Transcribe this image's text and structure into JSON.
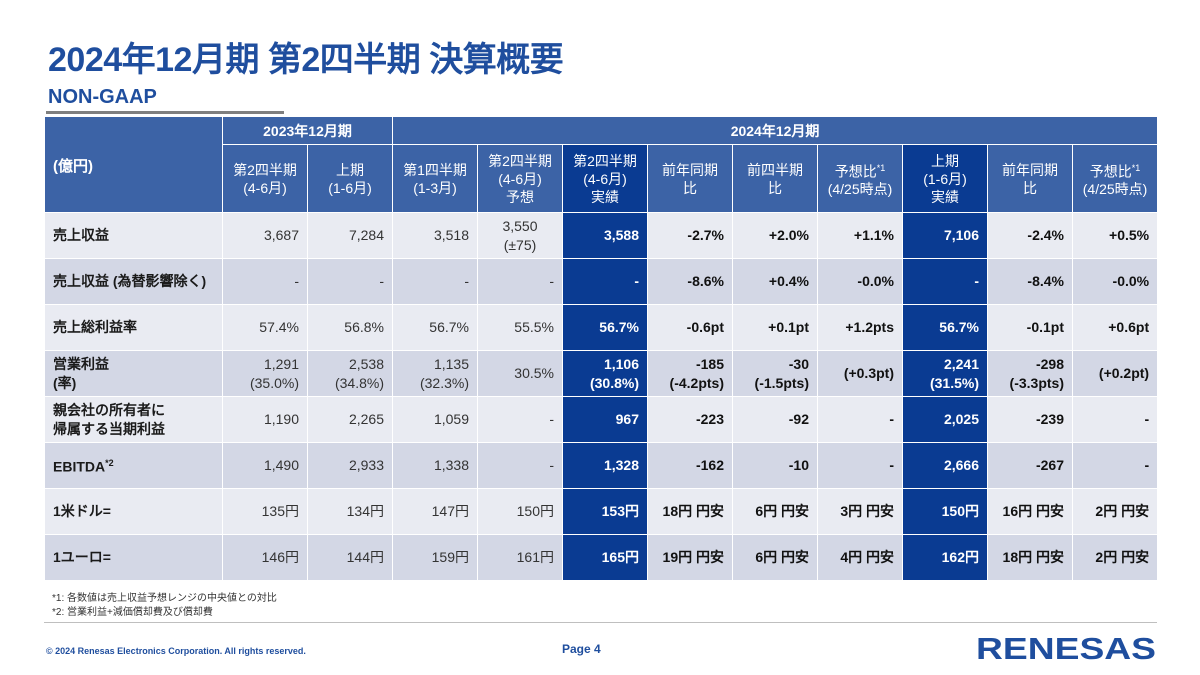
{
  "title": "2024年12月期 第2四半期 決算概要",
  "subtitle": "NON-GAAP",
  "table": {
    "unit": "(億円)",
    "group_2023": "2023年12月期",
    "group_2024": "2024年12月期",
    "columns": [
      [
        "第2四半期",
        "(4-6月)"
      ],
      [
        "上期",
        "(1-6月)"
      ],
      [
        "第1四半期",
        "(1-3月)"
      ],
      [
        "第2四半期",
        "(4-6月)",
        "予想"
      ],
      [
        "第2四半期",
        "(4-6月)",
        "実績"
      ],
      [
        "前年同期比"
      ],
      [
        "前四半期比"
      ],
      [
        "予想比",
        "(4/25時点)"
      ],
      [
        "上期",
        "(1-6月)",
        "実績"
      ],
      [
        "前年同期比"
      ],
      [
        "予想比",
        "(4/25時点)"
      ]
    ],
    "footnote_mark_1": "*1",
    "rows": [
      {
        "label": [
          "売上収益"
        ],
        "values": [
          [
            "3,687"
          ],
          [
            "7,284"
          ],
          [
            "3,518"
          ],
          [
            "3,550",
            "(±75)"
          ],
          [
            "3,588"
          ],
          [
            "-2.7%"
          ],
          [
            "+2.0%"
          ],
          [
            "+1.1%"
          ],
          [
            "7,106"
          ],
          [
            "-2.4%"
          ],
          [
            "+0.5%"
          ]
        ]
      },
      {
        "label": [
          "売上収益 (為替影響除く)"
        ],
        "values": [
          [
            "-"
          ],
          [
            "-"
          ],
          [
            "-"
          ],
          [
            "-"
          ],
          [
            "-"
          ],
          [
            "-8.6%"
          ],
          [
            "+0.4%"
          ],
          [
            "-0.0%"
          ],
          [
            "-"
          ],
          [
            "-8.4%"
          ],
          [
            "-0.0%"
          ]
        ]
      },
      {
        "label": [
          "売上総利益率"
        ],
        "values": [
          [
            "57.4%"
          ],
          [
            "56.8%"
          ],
          [
            "56.7%"
          ],
          [
            "55.5%"
          ],
          [
            "56.7%"
          ],
          [
            "-0.6pt"
          ],
          [
            "+0.1pt"
          ],
          [
            "+1.2pts"
          ],
          [
            "56.7%"
          ],
          [
            "-0.1pt"
          ],
          [
            "+0.6pt"
          ]
        ]
      },
      {
        "label": [
          "営業利益",
          "(率)"
        ],
        "values": [
          [
            "1,291",
            "(35.0%)"
          ],
          [
            "2,538",
            "(34.8%)"
          ],
          [
            "1,135",
            "(32.3%)"
          ],
          [
            "30.5%"
          ],
          [
            "1,106",
            "(30.8%)"
          ],
          [
            "-185",
            "(-4.2pts)"
          ],
          [
            "-30",
            "(-1.5pts)"
          ],
          [
            "(+0.3pt)"
          ],
          [
            "2,241",
            "(31.5%)"
          ],
          [
            "-298",
            "(-3.3pts)"
          ],
          [
            "(+0.2pt)"
          ]
        ]
      },
      {
        "label": [
          "親会社の所有者に",
          "帰属する当期利益"
        ],
        "values": [
          [
            "1,190"
          ],
          [
            "2,265"
          ],
          [
            "1,059"
          ],
          [
            "-"
          ],
          [
            "967"
          ],
          [
            "-223"
          ],
          [
            "-92"
          ],
          [
            "-"
          ],
          [
            "2,025"
          ],
          [
            "-239"
          ],
          [
            "-"
          ]
        ]
      },
      {
        "label": [
          "EBITDA"
        ],
        "label_sup": "*2",
        "values": [
          [
            "1,490"
          ],
          [
            "2,933"
          ],
          [
            "1,338"
          ],
          [
            "-"
          ],
          [
            "1,328"
          ],
          [
            "-162"
          ],
          [
            "-10"
          ],
          [
            "-"
          ],
          [
            "2,666"
          ],
          [
            "-267"
          ],
          [
            "-"
          ]
        ]
      },
      {
        "label": [
          "1米ドル="
        ],
        "values": [
          [
            "135円"
          ],
          [
            "134円"
          ],
          [
            "147円"
          ],
          [
            "150円"
          ],
          [
            "153円"
          ],
          [
            "18円 円安"
          ],
          [
            "6円 円安"
          ],
          [
            "3円 円安"
          ],
          [
            "150円"
          ],
          [
            "16円 円安"
          ],
          [
            "2円 円安"
          ]
        ]
      },
      {
        "label": [
          "1ユーロ="
        ],
        "values": [
          [
            "146円"
          ],
          [
            "144円"
          ],
          [
            "159円"
          ],
          [
            "161円"
          ],
          [
            "165円"
          ],
          [
            "19円 円安"
          ],
          [
            "6円 円安"
          ],
          [
            "4円 円安"
          ],
          [
            "162円"
          ],
          [
            "18円 円安"
          ],
          [
            "2円 円安"
          ]
        ]
      }
    ]
  },
  "notes": [
    "*1: 各数値は売上収益予想レンジの中央値との対比",
    "*2: 営業利益+減価償却費及び償却費"
  ],
  "footer": {
    "copyright": "© 2024 Renesas Electronics Corporation. All rights reserved.",
    "page": "Page 4",
    "logo_text": "RENESAS"
  },
  "colors": {
    "title": "#1f4e9e",
    "header": "#3c63a6",
    "highlight": "#0a3b92",
    "row_light": "#e9ebf2",
    "row_dark": "#d3d7e5"
  }
}
